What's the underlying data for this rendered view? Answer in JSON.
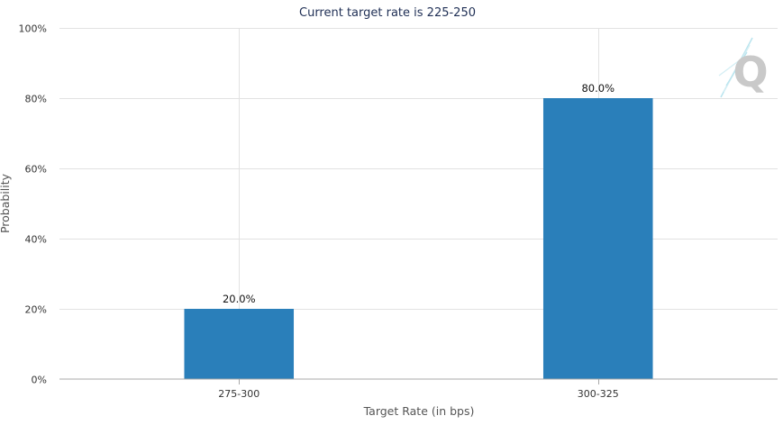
{
  "chart_data": {
    "type": "bar",
    "title": "Current target rate is 225-250",
    "xlabel": "Target Rate (in bps)",
    "ylabel": "Probability",
    "categories": [
      "275-300",
      "300-325"
    ],
    "values": [
      20.0,
      80.0
    ],
    "data_labels": [
      "20.0%",
      "80.0%"
    ],
    "ylim": [
      0,
      100
    ],
    "yticks": [
      0,
      20,
      40,
      60,
      80,
      100
    ],
    "ytick_labels": [
      "0%",
      "20%",
      "40%",
      "60%",
      "80%",
      "100%"
    ],
    "bar_color": "#2a7fba",
    "grid": true,
    "legend": "none"
  },
  "logo": {
    "text": "Q",
    "color": "#c9c9c9",
    "accent": "#b9e4ee"
  }
}
